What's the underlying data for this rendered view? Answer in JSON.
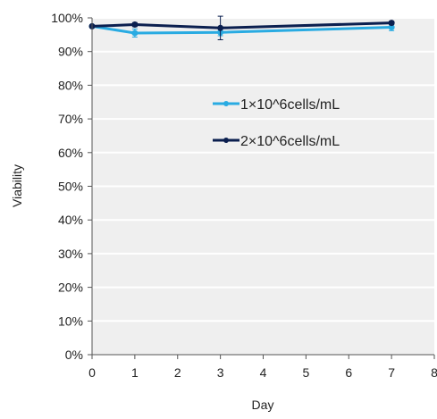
{
  "chart_data": {
    "type": "line",
    "title": "",
    "xlabel": "Day",
    "ylabel": "Viability",
    "xlim": [
      0,
      8
    ],
    "ylim": [
      0,
      1
    ],
    "x_ticks": [
      0,
      1,
      2,
      3,
      4,
      5,
      6,
      7,
      8
    ],
    "y_ticks": [
      0,
      0.1,
      0.2,
      0.3,
      0.4,
      0.5,
      0.6,
      0.7,
      0.8,
      0.9,
      1.0
    ],
    "y_tick_labels": [
      "0%",
      "10%",
      "20%",
      "30%",
      "40%",
      "50%",
      "60%",
      "70%",
      "80%",
      "90%",
      "100%"
    ],
    "grid": "horizontal",
    "legend_position": "right",
    "x": [
      0,
      1,
      3,
      7
    ],
    "series": [
      {
        "name": "1×10^6cells/mL",
        "color": "#29abe2",
        "values": [
          0.975,
          0.955,
          0.957,
          0.972
        ],
        "errors": [
          0.004,
          0.012,
          0.01,
          0.01
        ]
      },
      {
        "name": "2×10^6cells/mL",
        "color": "#0b1f4f",
        "values": [
          0.975,
          0.98,
          0.97,
          0.985
        ],
        "errors": [
          0.004,
          0.006,
          0.035,
          0.005
        ]
      }
    ]
  }
}
